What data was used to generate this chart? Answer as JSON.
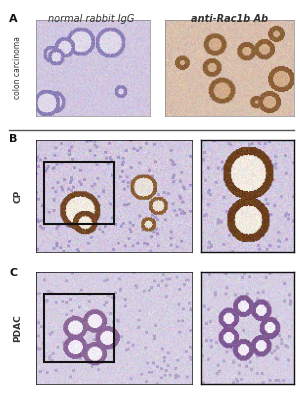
{
  "title": "",
  "panel_A_label": "A",
  "panel_B_label": "B",
  "panel_C_label": "C",
  "col_label_1": "normal rabbit IgG",
  "col_label_2": "anti-Rac1b Ab",
  "row_label_A": "colon carcinoma",
  "row_label_B": "CP",
  "row_label_C": "PDAC",
  "background_color": "#ffffff",
  "separator_color": "#555555",
  "box_color": "#111111",
  "label_fontsize": 7,
  "panel_letter_fontsize": 8,
  "img_A1_color": "#c8c0d8",
  "img_A2_color": "#d4a882",
  "img_B_main_color": "#c0b8cc",
  "img_B_zoom_color": "#c0b8cc",
  "img_C_main_color": "#c8c4d4",
  "img_C_zoom_color": "#c8c4d4"
}
